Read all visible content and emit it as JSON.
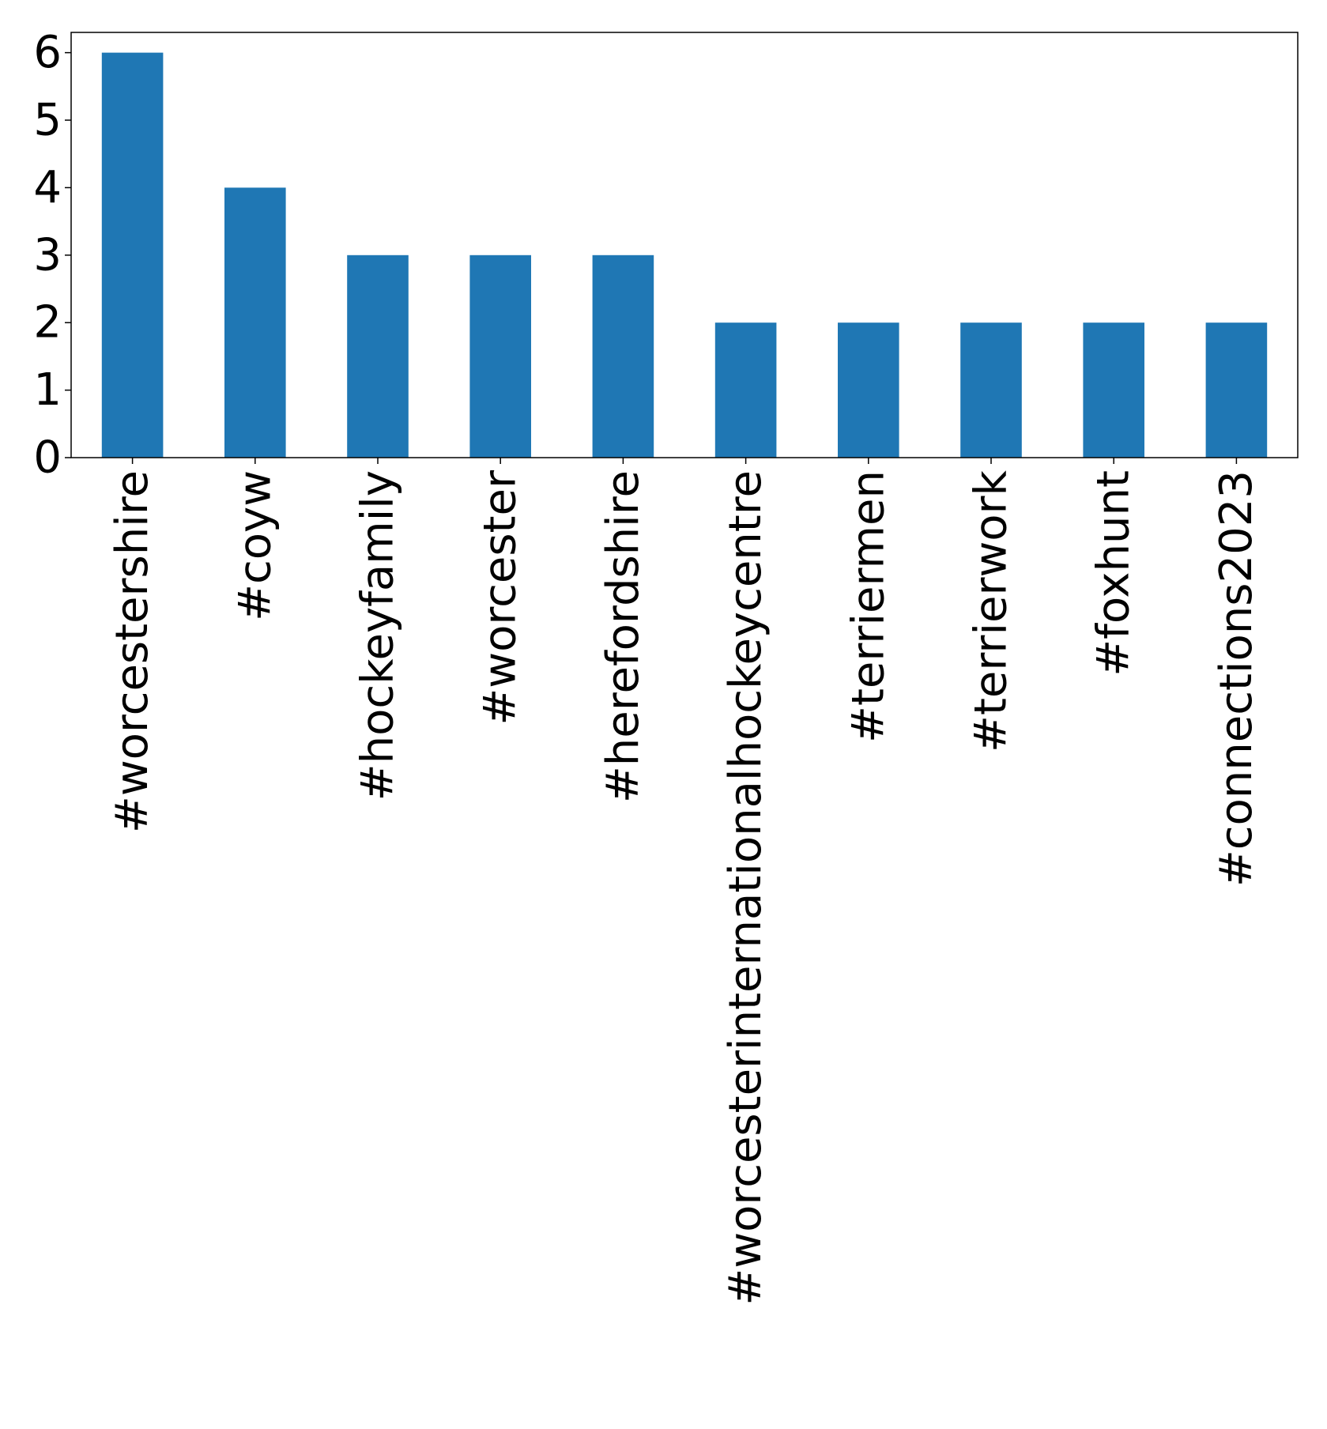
{
  "chart_data": {
    "type": "bar",
    "categories": [
      "#worcestershire",
      "#coyw",
      "#hockeyfamily",
      "#worcester",
      "#herefordshire",
      "#worcesterinternationalhockeycentre",
      "#terriermen",
      "#terrierwork",
      "#foxhunt",
      "#connections2023"
    ],
    "values": [
      6,
      4,
      3,
      3,
      3,
      2,
      2,
      2,
      2,
      2
    ],
    "title": "",
    "xlabel": "",
    "ylabel": "",
    "ylim": [
      0,
      6.3
    ],
    "yticks": [
      "0",
      "1",
      "2",
      "3",
      "4",
      "5",
      "6"
    ],
    "bar_color": "#1f77b4",
    "grid": false,
    "legend": "none"
  }
}
